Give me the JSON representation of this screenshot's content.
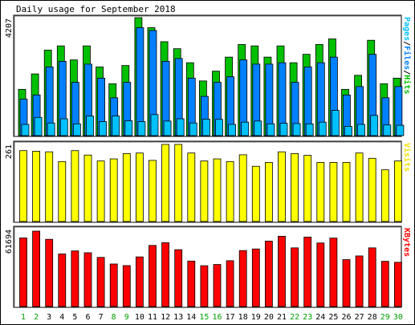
{
  "chart_data": [
    {
      "type": "bar",
      "title": "Daily usage for September 2018",
      "ymax_label": "4207",
      "legend": {
        "parts": [
          {
            "text": "Pages",
            "color": "#00c0ff"
          },
          {
            "text": "/",
            "color": "#000000"
          },
          {
            "text": "Files",
            "color": "#0080ff"
          },
          {
            "text": "/",
            "color": "#000000"
          },
          {
            "text": "Hits",
            "color": "#00c000"
          }
        ]
      },
      "categories": [
        "1",
        "2",
        "3",
        "4",
        "5",
        "6",
        "7",
        "8",
        "9",
        "10",
        "11",
        "12",
        "13",
        "14",
        "15",
        "16",
        "17",
        "18",
        "19",
        "20",
        "21",
        "22",
        "23",
        "24",
        "25",
        "26",
        "27",
        "28",
        "29",
        "30"
      ],
      "series": [
        {
          "name": "Hits",
          "color": "#00c000",
          "values": [
            1650,
            2200,
            3050,
            3200,
            2700,
            3200,
            2450,
            1850,
            2500,
            4207,
            3850,
            3350,
            3100,
            2600,
            1950,
            2300,
            2800,
            3250,
            3200,
            2800,
            3200,
            2600,
            2900,
            3250,
            3450,
            1650,
            2150,
            3400,
            1850,
            2050
          ]
        },
        {
          "name": "Files",
          "color": "#0080ff",
          "values": [
            1300,
            1450,
            2450,
            2650,
            1900,
            2550,
            2050,
            1350,
            1900,
            3850,
            3750,
            2650,
            2750,
            2050,
            1400,
            1900,
            2100,
            2700,
            2550,
            2550,
            2600,
            1900,
            2450,
            2600,
            2800,
            1450,
            1750,
            2900,
            1350,
            1750
          ]
        },
        {
          "name": "Pages",
          "color": "#00c0ff",
          "values": [
            400,
            650,
            450,
            600,
            420,
            700,
            500,
            700,
            530,
            500,
            750,
            520,
            600,
            450,
            590,
            580,
            400,
            480,
            520,
            420,
            440,
            430,
            420,
            480,
            900,
            330,
            400,
            720,
            380,
            370
          ]
        }
      ]
    },
    {
      "type": "bar",
      "ymax_label": "261",
      "legend": {
        "parts": [
          {
            "text": "Visits",
            "color": "#f0e000"
          }
        ]
      },
      "categories": [
        "1",
        "2",
        "3",
        "4",
        "5",
        "6",
        "7",
        "8",
        "9",
        "10",
        "11",
        "12",
        "13",
        "14",
        "15",
        "16",
        "17",
        "18",
        "19",
        "20",
        "21",
        "22",
        "23",
        "24",
        "25",
        "26",
        "27",
        "28",
        "29",
        "30"
      ],
      "series": [
        {
          "name": "Visits",
          "color": "#ffff00",
          "values": [
            240,
            238,
            236,
            203,
            240,
            225,
            205,
            212,
            230,
            232,
            207,
            261,
            261,
            232,
            205,
            212,
            203,
            226,
            187,
            200,
            236,
            230,
            224,
            200,
            200,
            200,
            232,
            214,
            175,
            205
          ]
        }
      ]
    },
    {
      "type": "bar",
      "ymax_label": "61694",
      "legend": {
        "parts": [
          {
            "text": "KBytes",
            "color": "#ff0000"
          }
        ]
      },
      "categories": [
        "1",
        "2",
        "3",
        "4",
        "5",
        "6",
        "7",
        "8",
        "9",
        "10",
        "11",
        "12",
        "13",
        "14",
        "15",
        "16",
        "17",
        "18",
        "19",
        "20",
        "21",
        "22",
        "23",
        "24",
        "25",
        "26",
        "27",
        "28",
        "29",
        "30"
      ],
      "weekend_days": [
        1,
        2,
        8,
        9,
        15,
        16,
        22,
        23,
        29,
        30
      ],
      "series": [
        {
          "name": "KBytes",
          "color": "#ff0000",
          "values": [
            56100,
            61694,
            55000,
            43000,
            45500,
            44000,
            40200,
            34800,
            33500,
            40600,
            50000,
            52200,
            46500,
            37200,
            33400,
            34400,
            37500,
            45800,
            47100,
            53500,
            57500,
            48000,
            56800,
            52000,
            56000,
            38400,
            41400,
            48000,
            37000,
            36200
          ]
        }
      ]
    }
  ]
}
